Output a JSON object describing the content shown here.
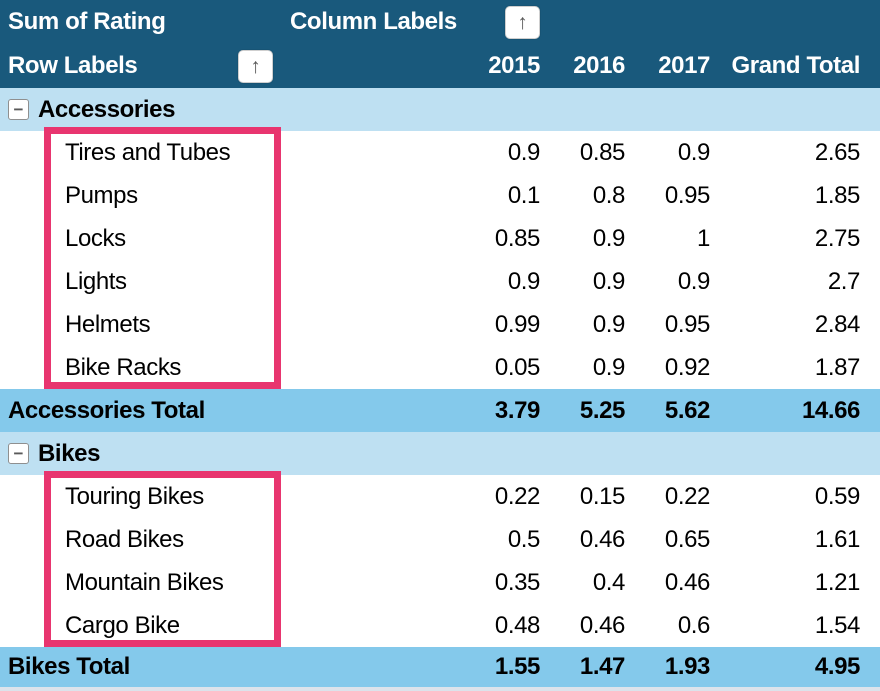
{
  "header": {
    "sum_label": "Sum of Rating",
    "column_labels": "Column Labels",
    "row_labels": "Row Labels",
    "years": [
      "2015",
      "2016",
      "2017"
    ],
    "grand_total": "Grand Total"
  },
  "groups": [
    {
      "name": "Accessories",
      "items": [
        {
          "label": "Tires and Tubes",
          "values": [
            "0.9",
            "0.85",
            "0.9",
            "2.65"
          ]
        },
        {
          "label": "Pumps",
          "values": [
            "0.1",
            "0.8",
            "0.95",
            "1.85"
          ]
        },
        {
          "label": "Locks",
          "values": [
            "0.85",
            "0.9",
            "1",
            "2.75"
          ]
        },
        {
          "label": "Lights",
          "values": [
            "0.9",
            "0.9",
            "0.9",
            "2.7"
          ]
        },
        {
          "label": "Helmets",
          "values": [
            "0.99",
            "0.9",
            "0.95",
            "2.84"
          ]
        },
        {
          "label": "Bike Racks",
          "values": [
            "0.05",
            "0.9",
            "0.92",
            "1.87"
          ]
        }
      ],
      "total_label": "Accessories Total",
      "total_values": [
        "3.79",
        "5.25",
        "5.62",
        "14.66"
      ]
    },
    {
      "name": "Bikes",
      "items": [
        {
          "label": "Touring Bikes",
          "values": [
            "0.22",
            "0.15",
            "0.22",
            "0.59"
          ]
        },
        {
          "label": "Road Bikes",
          "values": [
            "0.5",
            "0.46",
            "0.65",
            "1.61"
          ]
        },
        {
          "label": "Mountain Bikes",
          "values": [
            "0.35",
            "0.4",
            "0.46",
            "1.21"
          ]
        },
        {
          "label": "Cargo Bike",
          "values": [
            "0.48",
            "0.46",
            "0.6",
            "1.54"
          ]
        }
      ],
      "total_label": "Bikes Total",
      "total_values": [
        "1.55",
        "1.47",
        "1.93",
        "4.95"
      ]
    }
  ],
  "icons": {
    "filter_arrow": "↑",
    "collapse_minus": "−"
  },
  "colors": {
    "header-bg": "#19597C",
    "group-bg": "#BEE0F2",
    "total-bg": "#84C9EB",
    "annotation": "#E8356F",
    "strip-bg": "#DCE3EB"
  }
}
